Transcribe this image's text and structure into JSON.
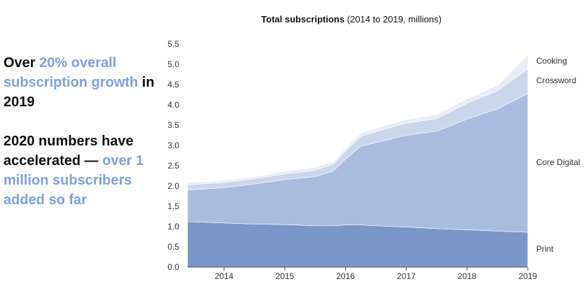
{
  "side_text": {
    "p1": {
      "a": "Over ",
      "b": "20% overall subscription growth",
      "c": " in 2019"
    },
    "p2": {
      "a": "2020 numbers have accelerated — ",
      "b": "over 1 million subscribers added so far"
    }
  },
  "colors": {
    "highlight": "#7fa1de",
    "print": "#7b96c9",
    "core_digital": "#a9bbde",
    "crossword": "#ccd6eb",
    "cooking": "#e7ecf6"
  },
  "chart_data": {
    "type": "area",
    "stacked": true,
    "title_bold": "Total subscriptions",
    "title_rest": " (2014 to 2019, millions)",
    "x": [
      2013.4,
      2014.0,
      2014.5,
      2015.0,
      2015.5,
      2015.8,
      2016.0,
      2016.25,
      2016.5,
      2017.0,
      2017.5,
      2018.0,
      2018.5,
      2019.0
    ],
    "xticks": [
      "2014",
      "2015",
      "2016",
      "2017",
      "2018",
      "2019"
    ],
    "xtick_values": [
      2014,
      2015,
      2016,
      2017,
      2018,
      2019
    ],
    "ylim": [
      0,
      5.5
    ],
    "yticks": [
      "0.0",
      "0.5",
      "1.0",
      "1.5",
      "2.0",
      "2.5",
      "3.0",
      "3.5",
      "4.0",
      "4.5",
      "5.0",
      "5.5"
    ],
    "ytick_values": [
      0,
      0.5,
      1.0,
      1.5,
      2.0,
      2.5,
      3.0,
      3.5,
      4.0,
      4.5,
      5.0,
      5.5
    ],
    "series": [
      {
        "name": "Print",
        "color": "#7b96c9",
        "values": [
          1.12,
          1.09,
          1.06,
          1.05,
          1.02,
          1.02,
          1.04,
          1.04,
          1.02,
          0.99,
          0.95,
          0.92,
          0.89,
          0.86
        ]
      },
      {
        "name": "Core Digital",
        "color": "#a9bbde",
        "values": [
          0.78,
          0.87,
          0.99,
          1.11,
          1.21,
          1.35,
          1.62,
          1.94,
          2.05,
          2.26,
          2.4,
          2.73,
          3.01,
          3.42
        ]
      },
      {
        "name": "Crossword",
        "color": "#ccd6eb",
        "values": [
          0.13,
          0.13,
          0.13,
          0.14,
          0.16,
          0.17,
          0.2,
          0.25,
          0.27,
          0.3,
          0.31,
          0.39,
          0.45,
          0.6
        ]
      },
      {
        "name": "Cooking",
        "color": "#e7ecf6",
        "values": [
          0.05,
          0.05,
          0.05,
          0.06,
          0.06,
          0.06,
          0.07,
          0.07,
          0.08,
          0.09,
          0.1,
          0.11,
          0.13,
          0.35
        ]
      }
    ]
  }
}
